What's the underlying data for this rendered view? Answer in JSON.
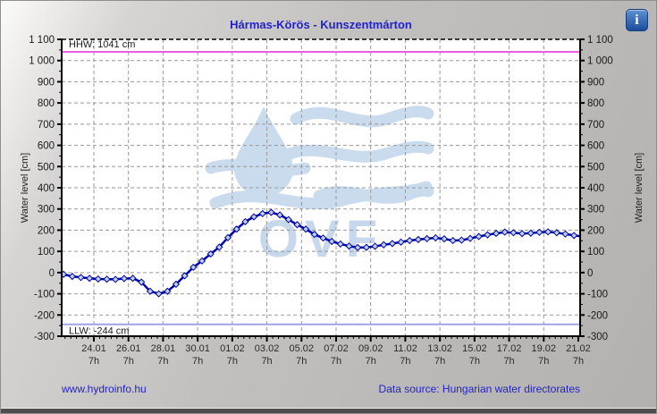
{
  "header": {
    "title": "Hármas-Körös - Kunszentmárton",
    "info_glyph": "i"
  },
  "footer": {
    "site_link": "www.hydroinfo.hu",
    "data_source": "Data source: Hungarian water directorates"
  },
  "colors": {
    "accent_blue": "#2222cc",
    "series_line": "#0000b2",
    "marker_fill": "#b8d2ee",
    "marker_stroke": "#0000a0",
    "hhw_magenta": "#e85fe0",
    "llw_periwinkle": "#a2a2e6",
    "grid_gray": "#999999",
    "watermark_blue": "#cbdbee",
    "tick_text": "#2a2a2a"
  },
  "chart_data": {
    "type": "line",
    "title": "Hármas-Körös - Kunszentmárton",
    "ylabel_left": "Water level [cm]",
    "ylabel_right": "Water level [cm]",
    "ylim": [
      -300,
      1100
    ],
    "y_tick_step": 100,
    "grid": "dashed",
    "legend_position": "none",
    "watermark_text": "OVF",
    "x_ticks": [
      {
        "date": "24.01",
        "hour": "7h"
      },
      {
        "date": "26.01",
        "hour": "7h"
      },
      {
        "date": "28.01",
        "hour": "7h"
      },
      {
        "date": "30.01",
        "hour": "7h"
      },
      {
        "date": "01.02",
        "hour": "7h"
      },
      {
        "date": "03.02",
        "hour": "7h"
      },
      {
        "date": "05.02",
        "hour": "7h"
      },
      {
        "date": "07.02",
        "hour": "7h"
      },
      {
        "date": "09.02",
        "hour": "7h"
      },
      {
        "date": "11.02",
        "hour": "7h"
      },
      {
        "date": "13.02",
        "hour": "7h"
      },
      {
        "date": "15.02",
        "hour": "7h"
      },
      {
        "date": "17.02",
        "hour": "7h"
      },
      {
        "date": "19.02",
        "hour": "7h"
      },
      {
        "date": "21.02",
        "hour": "7h"
      }
    ],
    "reference_lines": [
      {
        "name": "HHW",
        "label": "HHW: 1041 cm",
        "value": 1041,
        "color": "#e85fe0"
      },
      {
        "name": "LLW",
        "label": "LLW: -244 cm",
        "value": -244,
        "color": "#a2a2e6"
      }
    ],
    "series": [
      {
        "name": "Water level",
        "color": "#0000b2",
        "marker": "diamond",
        "marker_fill": "#b8d2ee",
        "points": [
          [
            "22.01 13h",
            -8
          ],
          [
            "23.01 01h",
            -18
          ],
          [
            "23.01 13h",
            -23
          ],
          [
            "24.01 01h",
            -27
          ],
          [
            "24.01 13h",
            -30
          ],
          [
            "25.01 01h",
            -31
          ],
          [
            "25.01 13h",
            -32
          ],
          [
            "26.01 01h",
            -28
          ],
          [
            "26.01 13h",
            -27
          ],
          [
            "27.01 01h",
            -45
          ],
          [
            "27.01 13h",
            -88
          ],
          [
            "28.01 01h",
            -100
          ],
          [
            "28.01 13h",
            -88
          ],
          [
            "29.01 01h",
            -55
          ],
          [
            "29.01 13h",
            -15
          ],
          [
            "30.01 01h",
            25
          ],
          [
            "30.01 13h",
            55
          ],
          [
            "31.01 01h",
            88
          ],
          [
            "31.01 13h",
            120
          ],
          [
            "01.02 01h",
            165
          ],
          [
            "01.02 13h",
            205
          ],
          [
            "02.02 01h",
            240
          ],
          [
            "02.02 13h",
            263
          ],
          [
            "03.02 01h",
            278
          ],
          [
            "03.02 13h",
            284
          ],
          [
            "04.02 01h",
            272
          ],
          [
            "04.02 13h",
            250
          ],
          [
            "05.02 01h",
            226
          ],
          [
            "05.02 13h",
            205
          ],
          [
            "06.02 01h",
            180
          ],
          [
            "06.02 13h",
            163
          ],
          [
            "07.02 01h",
            147
          ],
          [
            "07.02 13h",
            135
          ],
          [
            "08.02 01h",
            125
          ],
          [
            "08.02 13h",
            118
          ],
          [
            "09.02 01h",
            119
          ],
          [
            "09.02 13h",
            124
          ],
          [
            "10.02 01h",
            131
          ],
          [
            "10.02 13h",
            137
          ],
          [
            "11.02 01h",
            144
          ],
          [
            "11.02 13h",
            151
          ],
          [
            "12.02 01h",
            156
          ],
          [
            "12.02 13h",
            160
          ],
          [
            "13.02 01h",
            164
          ],
          [
            "13.02 13h",
            159
          ],
          [
            "14.02 01h",
            151
          ],
          [
            "14.02 13h",
            153
          ],
          [
            "15.02 01h",
            161
          ],
          [
            "15.02 13h",
            170
          ],
          [
            "16.02 01h",
            178
          ],
          [
            "16.02 13h",
            185
          ],
          [
            "17.02 01h",
            191
          ],
          [
            "17.02 13h",
            188
          ],
          [
            "18.02 01h",
            184
          ],
          [
            "18.02 13h",
            186
          ],
          [
            "19.02 01h",
            190
          ],
          [
            "19.02 13h",
            192
          ],
          [
            "20.02 01h",
            188
          ],
          [
            "20.02 13h",
            182
          ],
          [
            "21.02 01h",
            175
          ],
          [
            "21.02 13h",
            170
          ]
        ]
      }
    ]
  }
}
